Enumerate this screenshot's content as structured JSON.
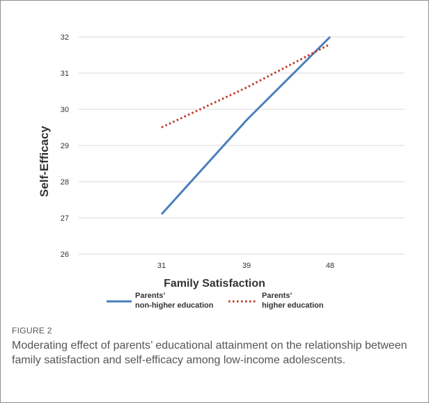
{
  "chart_data": {
    "type": "line",
    "x": [
      "31",
      "39",
      "48"
    ],
    "xlabel": "Family Satisfaction",
    "ylabel": "Self-Efficacy",
    "ylim": [
      26,
      32
    ],
    "yticks": [
      "26",
      "27",
      "28",
      "29",
      "30",
      "31",
      "32"
    ],
    "grid": true,
    "legend_placement": "bottom",
    "series": [
      {
        "name_lines": [
          "Parents’",
          "non-higher education"
        ],
        "values": [
          27.1,
          29.7,
          32.0
        ],
        "color": "#4a7ebb",
        "style": "solid"
      },
      {
        "name_lines": [
          "Parents’",
          "higher education"
        ],
        "values": [
          29.5,
          30.6,
          31.8
        ],
        "color": "#c0392b",
        "style": "dotted"
      }
    ]
  },
  "caption": {
    "label": "FIGURE 2",
    "text": "Moderating effect of parents’ educational attainment on the relationship between family satisfaction and self-efficacy among low-income adolescents."
  }
}
